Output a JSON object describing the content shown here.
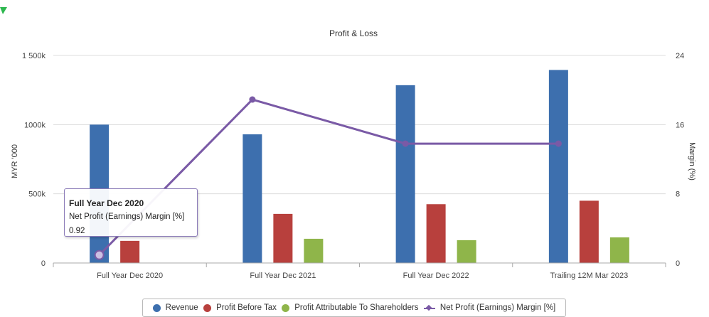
{
  "colors": {
    "revenue": "#3d6fae",
    "profit_before_tax": "#b8403d",
    "profit_attributable": "#8fb54a",
    "net_margin": "#7a5aa6",
    "grid": "#dcdcdc",
    "corner": "#2eb84f"
  },
  "tooltip": {
    "title": "Full Year Dec 2020",
    "label": "Net Profit (Earnings) Margin [%]",
    "value": "0.92"
  },
  "chart_data": {
    "type": "bar",
    "title": "Profit & Loss",
    "categories": [
      "Full Year Dec 2020",
      "Full Year Dec 2021",
      "Full Year Dec 2022",
      "Trailing 12M Mar 2023"
    ],
    "y_left": {
      "label": "MYR '000",
      "range": [
        0,
        1500
      ],
      "ticks": [
        0,
        500,
        1000,
        1500
      ],
      "tick_labels": [
        "0",
        "500k",
        "1000k",
        "1 500k"
      ]
    },
    "y_right": {
      "label": "Margin (%)",
      "range": [
        0,
        24
      ],
      "ticks": [
        0,
        8,
        16,
        24
      ],
      "tick_labels": [
        "0",
        "8",
        "16",
        "24"
      ]
    },
    "series": [
      {
        "name": "Revenue",
        "type": "bar",
        "axis": "left",
        "values": [
          1000,
          930,
          1285,
          1395
        ]
      },
      {
        "name": "Profit Before Tax",
        "type": "bar",
        "axis": "left",
        "values": [
          160,
          355,
          425,
          450
        ]
      },
      {
        "name": "Profit Attributable To Shareholders",
        "type": "bar",
        "axis": "left",
        "values": [
          null,
          175,
          165,
          185
        ]
      },
      {
        "name": "Net Profit (Earnings) Margin [%]",
        "type": "line",
        "axis": "right",
        "values": [
          0.92,
          18.9,
          13.8,
          13.8
        ]
      }
    ],
    "grid": true,
    "legend_position": "bottom"
  }
}
